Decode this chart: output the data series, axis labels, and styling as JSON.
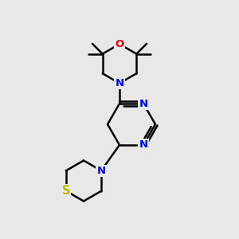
{
  "bg_color": "#e8e8e8",
  "atom_colors": {
    "C": "#000000",
    "N": "#0000ee",
    "O": "#ee0000",
    "S": "#bbbb00"
  },
  "bond_color": "#000000",
  "bond_width": 1.8,
  "figsize": [
    3.0,
    3.0
  ],
  "dpi": 100,
  "xlim": [
    0,
    10
  ],
  "ylim": [
    0,
    10
  ]
}
